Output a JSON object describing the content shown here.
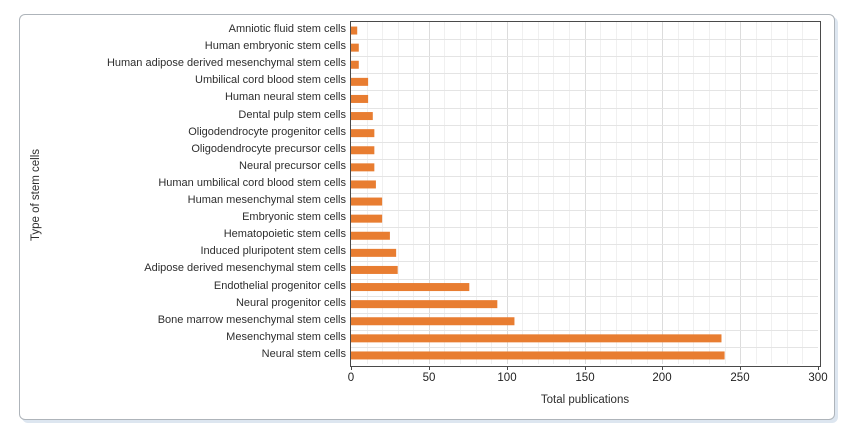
{
  "figure": {
    "frame_border_color": "#aeb4ba",
    "shadow_color": "#dde6f0",
    "background": "#ffffff"
  },
  "chart_data": {
    "type": "bar",
    "orientation": "horizontal",
    "title": "",
    "xlabel": "Total publications",
    "ylabel": "Type of stem cells",
    "xlim": [
      0,
      300
    ],
    "xticks": [
      0,
      50,
      100,
      150,
      200,
      250,
      300
    ],
    "grid": {
      "minor_step": 10,
      "major_step": 50,
      "horizontal_row_lines": true,
      "minor_color": "#f0f0f0",
      "major_color": "#dcdcdc",
      "row_line_color": "#e4e4e4"
    },
    "bar_color": "#E87D31",
    "categories": [
      "Amniotic fluid stem cells",
      "Human embryonic stem cells",
      "Human adipose derived mesenchymal stem cells",
      "Umbilical cord blood stem cells",
      "Human neural stem cells",
      "Dental pulp stem cells",
      "Oligodendrocyte progenitor cells",
      "Oligodendrocyte precursor cells",
      "Neural precursor cells",
      "Human umbilical cord blood stem cells",
      "Human mesenchymal stem cells",
      "Embryonic stem cells",
      "Hematopoietic stem cells",
      "Induced pluripotent stem cells",
      "Adipose derived mesenchymal stem cells",
      "Endothelial progenitor cells",
      "Neural progenitor cells",
      "Bone marrow mesenchymal stem cells",
      "Mesenchymal stem cells",
      "Neural stem cells"
    ],
    "values": [
      4,
      5,
      5,
      11,
      11,
      14,
      15,
      15,
      15,
      16,
      20,
      20,
      25,
      29,
      30,
      76,
      94,
      105,
      238,
      240
    ]
  }
}
